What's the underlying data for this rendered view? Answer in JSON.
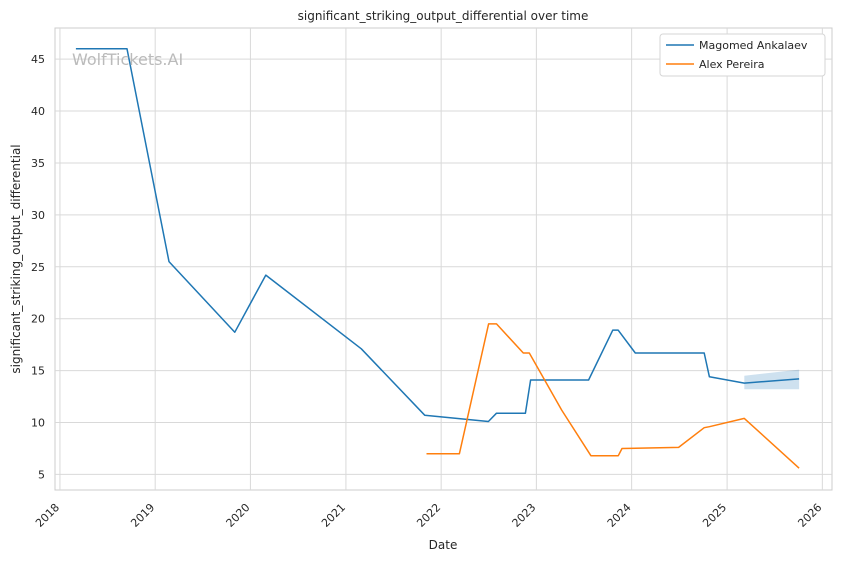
{
  "chart_data": {
    "type": "line",
    "title": "significant_striking_output_differential over time",
    "xlabel": "Date",
    "ylabel": "significant_striking_output_differential",
    "watermark": "WolfTickets.AI",
    "xlim": [
      "2017-12-13",
      "2026-02-07"
    ],
    "ylim": [
      3.5,
      48
    ],
    "x_ticks": [
      "2018",
      "2019",
      "2020",
      "2021",
      "2022",
      "2023",
      "2024",
      "2025",
      "2026"
    ],
    "y_ticks": [
      5,
      10,
      15,
      20,
      25,
      30,
      35,
      40,
      45
    ],
    "grid": true,
    "legend_position": "top-right",
    "series": [
      {
        "name": "Magomed Ankalaev",
        "color": "#1f77b4",
        "points": [
          [
            "2018-03-03",
            46.0
          ],
          [
            "2018-09-15",
            46.0
          ],
          [
            "2019-02-23",
            25.5
          ],
          [
            "2019-11-02",
            18.7
          ],
          [
            "2020-02-29",
            24.2
          ],
          [
            "2021-03-01",
            17.1
          ],
          [
            "2021-10-30",
            10.7
          ],
          [
            "2022-07-01",
            10.1
          ],
          [
            "2022-08-01",
            10.9
          ],
          [
            "2022-11-20",
            10.9
          ],
          [
            "2022-12-10",
            14.1
          ],
          [
            "2023-07-20",
            14.1
          ],
          [
            "2023-10-21",
            18.9
          ],
          [
            "2023-11-10",
            18.9
          ],
          [
            "2024-01-15",
            16.7
          ],
          [
            "2024-10-05",
            16.7
          ],
          [
            "2024-10-25",
            14.4
          ],
          [
            "2025-03-08",
            13.8
          ],
          [
            "2025-10-04",
            14.2
          ]
        ],
        "band": {
          "x": [
            "2025-03-08",
            "2025-10-04"
          ],
          "lower": [
            13.2,
            13.2
          ],
          "upper": [
            14.5,
            15.1
          ]
        }
      },
      {
        "name": "Alex Pereira",
        "color": "#ff7f0e",
        "points": [
          [
            "2021-11-06",
            7.0
          ],
          [
            "2022-03-12",
            7.0
          ],
          [
            "2022-07-02",
            19.5
          ],
          [
            "2022-08-01",
            19.5
          ],
          [
            "2022-11-12",
            16.7
          ],
          [
            "2022-12-05",
            16.7
          ],
          [
            "2023-04-08",
            11.2
          ],
          [
            "2023-07-29",
            6.8
          ],
          [
            "2023-11-11",
            6.8
          ],
          [
            "2023-11-25",
            7.5
          ],
          [
            "2024-06-29",
            7.6
          ],
          [
            "2024-10-05",
            9.5
          ],
          [
            "2024-10-25",
            9.6
          ],
          [
            "2025-03-08",
            10.4
          ],
          [
            "2025-10-04",
            5.6
          ]
        ]
      }
    ]
  }
}
